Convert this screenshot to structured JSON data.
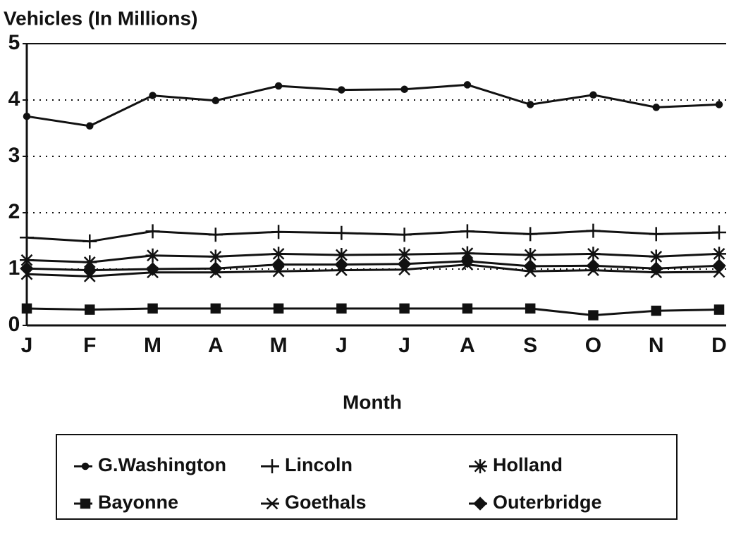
{
  "chart_data": {
    "type": "line",
    "y_label": "Vehicles (In Millions)",
    "x_label": "Month",
    "categories": [
      "J",
      "F",
      "M",
      "A",
      "M",
      "J",
      "J",
      "A",
      "S",
      "O",
      "N",
      "D"
    ],
    "ylim": [
      0,
      5
    ],
    "yticks": [
      0,
      1,
      2,
      3,
      4,
      5
    ],
    "grid": true,
    "series": [
      {
        "name": "G.Washington",
        "color": "#111111",
        "marker": "dot",
        "values": [
          3.71,
          3.54,
          4.08,
          3.99,
          4.25,
          4.18,
          4.19,
          4.27,
          3.92,
          4.09,
          3.87,
          3.92
        ]
      },
      {
        "name": "Lincoln",
        "color": "#111111",
        "marker": "plus",
        "values": [
          1.56,
          1.49,
          1.67,
          1.61,
          1.66,
          1.64,
          1.61,
          1.67,
          1.62,
          1.68,
          1.62,
          1.65
        ]
      },
      {
        "name": "Holland",
        "color": "#111111",
        "marker": "asterisk",
        "values": [
          1.16,
          1.12,
          1.24,
          1.22,
          1.27,
          1.25,
          1.26,
          1.28,
          1.25,
          1.27,
          1.22,
          1.27
        ]
      },
      {
        "name": "Bayonne",
        "color": "#111111",
        "marker": "square",
        "values": [
          0.3,
          0.28,
          0.3,
          0.3,
          0.3,
          0.3,
          0.3,
          0.3,
          0.3,
          0.18,
          0.26,
          0.28
        ]
      },
      {
        "name": "Goethals",
        "color": "#111111",
        "marker": "x",
        "values": [
          0.91,
          0.87,
          0.94,
          0.94,
          0.96,
          0.98,
          0.99,
          1.08,
          0.96,
          0.98,
          0.94,
          0.95
        ]
      },
      {
        "name": "Outerbridge",
        "color": "#111111",
        "marker": "diamond",
        "values": [
          1.01,
          0.98,
          1.0,
          1.01,
          1.08,
          1.08,
          1.09,
          1.14,
          1.05,
          1.06,
          1.01,
          1.06
        ]
      }
    ]
  }
}
